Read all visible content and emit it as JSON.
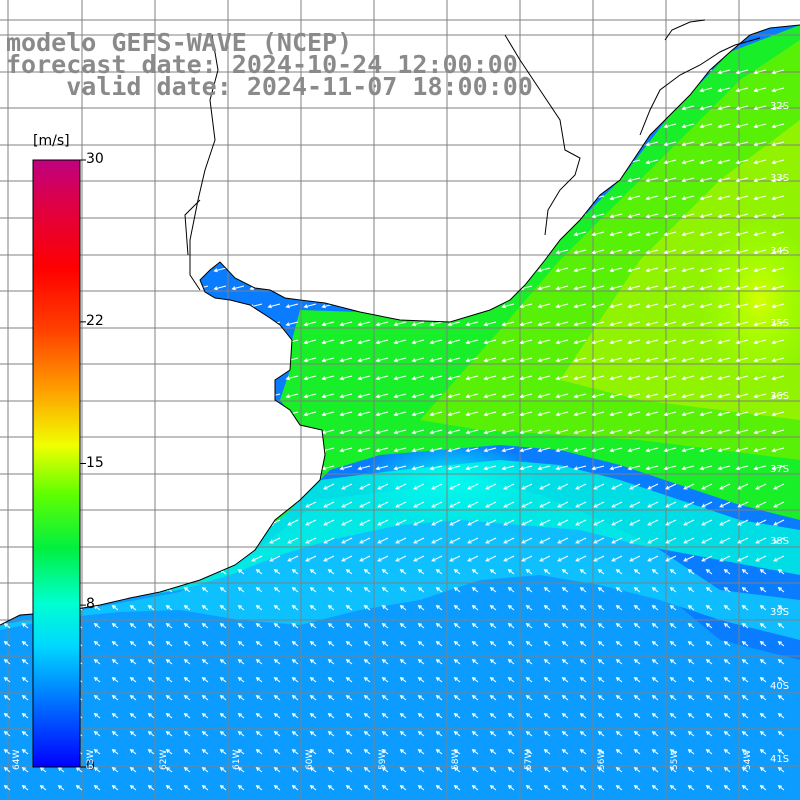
{
  "title": {
    "model": "modelo GEFS-WAVE (NCEP)",
    "forecast": "forecast date: 2024-10-24 12:00:00",
    "valid": "valid date: 2024-11-07 18:00:00"
  },
  "colorbar": {
    "unit": "[m/s]",
    "ticks": [
      "30",
      "22",
      "15",
      "8",
      "0"
    ],
    "tick_values": [
      30,
      22,
      15,
      8,
      0
    ]
  },
  "lat_labels": [
    "32S",
    "33S",
    "34S",
    "35S",
    "36S",
    "37S",
    "38S",
    "39S",
    "40S",
    "41S"
  ],
  "lon_labels": [
    "64W",
    "63W",
    "62W",
    "61W",
    "60W",
    "59W",
    "58W",
    "57W",
    "56W",
    "55W",
    "54W"
  ],
  "colors": {
    "land": "#ffffff",
    "coast": "#000000",
    "grid": "#808080",
    "arrows": "#ffffff",
    "title": "#8a8a8a"
  }
}
